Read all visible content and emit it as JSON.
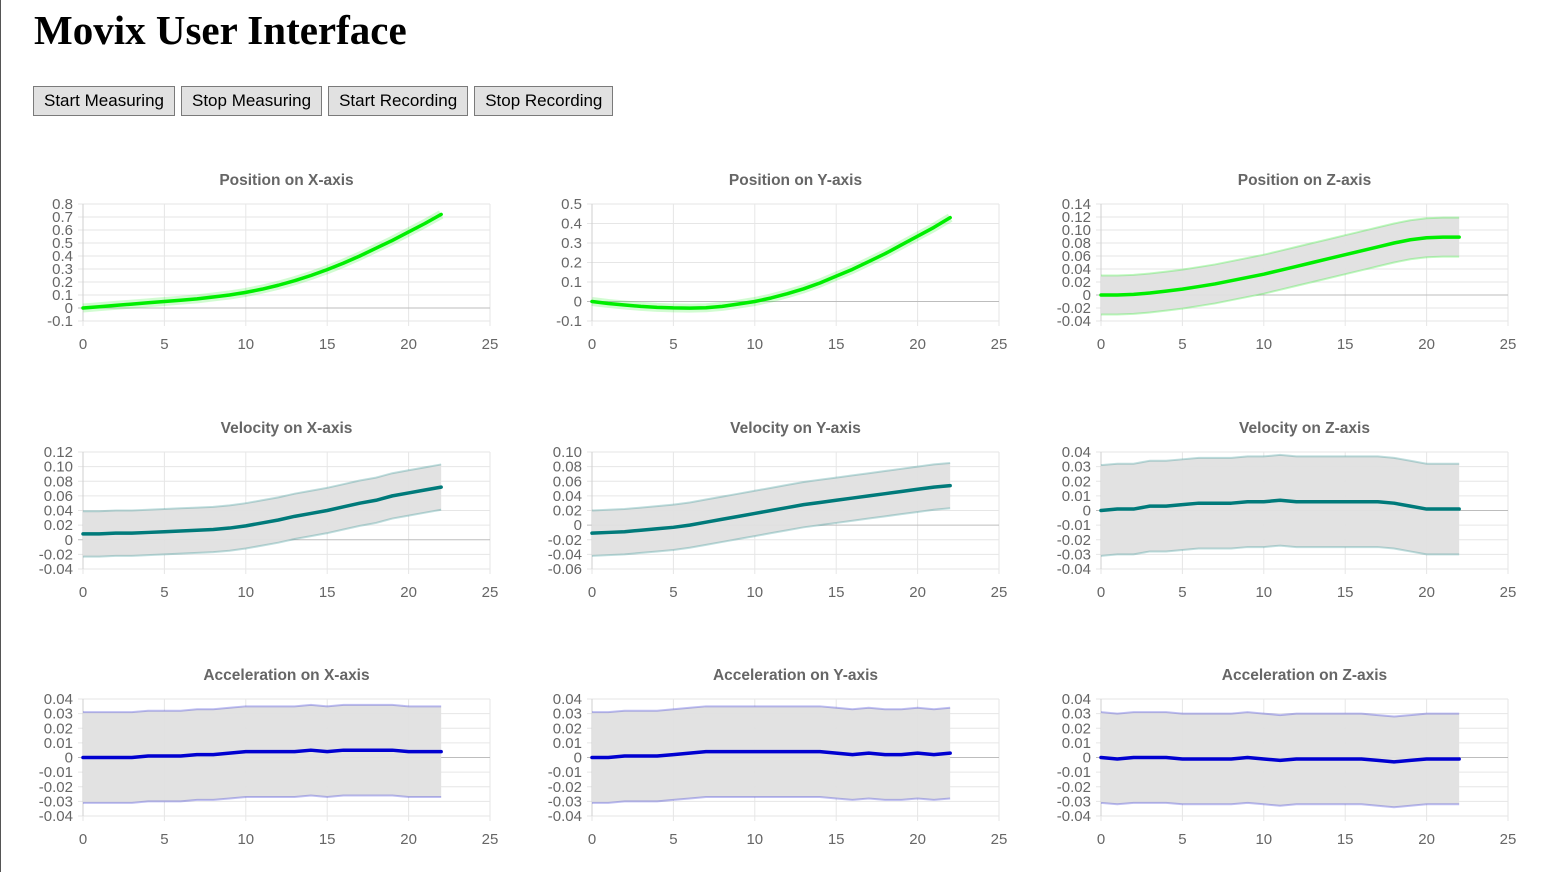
{
  "page": {
    "title": "Movix User Interface"
  },
  "toolbar": {
    "buttons": [
      {
        "label": "Start Measuring"
      },
      {
        "label": "Stop Measuring"
      },
      {
        "label": "Start Recording"
      },
      {
        "label": "Stop Recording"
      }
    ]
  },
  "colors": {
    "position": "#00ee00",
    "velocity": "#007a7a",
    "acceleration": "#0000d0",
    "band_fill": "#e0e0e0"
  },
  "chart_data": [
    {
      "type": "line",
      "title": "Position on X-axis",
      "color": "#00ee00",
      "xlim": [
        0,
        25
      ],
      "xticks": [
        0,
        5,
        10,
        15,
        20,
        25
      ],
      "ylim": [
        -0.1,
        0.8
      ],
      "yticks": [
        -0.1,
        0,
        0.1,
        0.2,
        0.3,
        0.4,
        0.5,
        0.6,
        0.7,
        0.8
      ],
      "ydecimals": 1,
      "x": [
        0,
        1,
        2,
        3,
        4,
        5,
        6,
        7,
        8,
        9,
        10,
        11,
        12,
        13,
        14,
        15,
        16,
        17,
        18,
        19,
        20,
        21,
        22
      ],
      "y": [
        0,
        0.01,
        0.02,
        0.03,
        0.04,
        0.05,
        0.06,
        0.07,
        0.085,
        0.1,
        0.12,
        0.145,
        0.175,
        0.21,
        0.25,
        0.295,
        0.345,
        0.4,
        0.46,
        0.52,
        0.585,
        0.65,
        0.72
      ],
      "band": [
        0,
        0,
        0,
        0,
        0,
        0,
        0,
        0,
        0,
        0,
        0,
        0,
        0,
        0,
        0,
        0,
        0,
        0,
        0,
        0,
        0,
        0,
        0
      ]
    },
    {
      "type": "line",
      "title": "Position on Y-axis",
      "color": "#00ee00",
      "xlim": [
        0,
        25
      ],
      "xticks": [
        0,
        5,
        10,
        15,
        20,
        25
      ],
      "ylim": [
        -0.1,
        0.5
      ],
      "yticks": [
        -0.1,
        0,
        0.1,
        0.2,
        0.3,
        0.4,
        0.5
      ],
      "ydecimals": 1,
      "x": [
        0,
        1,
        2,
        3,
        4,
        5,
        6,
        7,
        8,
        9,
        10,
        11,
        12,
        13,
        14,
        15,
        16,
        17,
        18,
        19,
        20,
        21,
        22
      ],
      "y": [
        0,
        -0.01,
        -0.018,
        -0.025,
        -0.03,
        -0.033,
        -0.034,
        -0.032,
        -0.025,
        -0.013,
        0,
        0.018,
        0.04,
        0.065,
        0.095,
        0.13,
        0.165,
        0.205,
        0.245,
        0.29,
        0.335,
        0.38,
        0.43
      ],
      "band": [
        0,
        0,
        0,
        0,
        0,
        0,
        0,
        0,
        0,
        0,
        0,
        0,
        0,
        0,
        0,
        0,
        0,
        0,
        0,
        0,
        0,
        0,
        0
      ]
    },
    {
      "type": "line",
      "title": "Position on Z-axis",
      "color": "#00ee00",
      "xlim": [
        0,
        25
      ],
      "xticks": [
        0,
        5,
        10,
        15,
        20,
        25
      ],
      "ylim": [
        -0.04,
        0.14
      ],
      "yticks": [
        -0.04,
        -0.02,
        0,
        0.02,
        0.04,
        0.06,
        0.08,
        0.1,
        0.12,
        0.14
      ],
      "ydecimals": 2,
      "x": [
        0,
        1,
        2,
        3,
        4,
        5,
        6,
        7,
        8,
        9,
        10,
        11,
        12,
        13,
        14,
        15,
        16,
        17,
        18,
        19,
        20,
        21,
        22
      ],
      "y": [
        0,
        0,
        0.001,
        0.003,
        0.006,
        0.009,
        0.013,
        0.017,
        0.022,
        0.027,
        0.032,
        0.038,
        0.044,
        0.05,
        0.056,
        0.062,
        0.068,
        0.074,
        0.08,
        0.085,
        0.088,
        0.089,
        0.089
      ],
      "band": [
        0.03,
        0.03,
        0.03,
        0.03,
        0.03,
        0.03,
        0.03,
        0.03,
        0.03,
        0.03,
        0.03,
        0.03,
        0.03,
        0.03,
        0.03,
        0.03,
        0.03,
        0.03,
        0.03,
        0.03,
        0.03,
        0.03,
        0.03
      ]
    },
    {
      "type": "line",
      "title": "Velocity on X-axis",
      "color": "#007a7a",
      "xlim": [
        0,
        25
      ],
      "xticks": [
        0,
        5,
        10,
        15,
        20,
        25
      ],
      "ylim": [
        -0.04,
        0.12
      ],
      "yticks": [
        -0.04,
        -0.02,
        0,
        0.02,
        0.04,
        0.06,
        0.08,
        0.1,
        0.12
      ],
      "ydecimals": 2,
      "x": [
        0,
        1,
        2,
        3,
        4,
        5,
        6,
        7,
        8,
        9,
        10,
        11,
        12,
        13,
        14,
        15,
        16,
        17,
        18,
        19,
        20,
        21,
        22
      ],
      "y": [
        0.008,
        0.008,
        0.009,
        0.009,
        0.01,
        0.011,
        0.012,
        0.013,
        0.014,
        0.016,
        0.019,
        0.023,
        0.027,
        0.032,
        0.036,
        0.04,
        0.045,
        0.05,
        0.054,
        0.06,
        0.064,
        0.068,
        0.072
      ],
      "band": [
        0.031,
        0.031,
        0.031,
        0.031,
        0.031,
        0.031,
        0.031,
        0.031,
        0.031,
        0.031,
        0.031,
        0.031,
        0.031,
        0.031,
        0.031,
        0.031,
        0.031,
        0.031,
        0.031,
        0.031,
        0.031,
        0.031,
        0.031
      ]
    },
    {
      "type": "line",
      "title": "Velocity on Y-axis",
      "color": "#007a7a",
      "xlim": [
        0,
        25
      ],
      "xticks": [
        0,
        5,
        10,
        15,
        20,
        25
      ],
      "ylim": [
        -0.06,
        0.1
      ],
      "yticks": [
        -0.06,
        -0.04,
        -0.02,
        0,
        0.02,
        0.04,
        0.06,
        0.08,
        0.1
      ],
      "ydecimals": 2,
      "x": [
        0,
        1,
        2,
        3,
        4,
        5,
        6,
        7,
        8,
        9,
        10,
        11,
        12,
        13,
        14,
        15,
        16,
        17,
        18,
        19,
        20,
        21,
        22
      ],
      "y": [
        -0.011,
        -0.01,
        -0.009,
        -0.007,
        -0.005,
        -0.003,
        0,
        0.004,
        0.008,
        0.012,
        0.016,
        0.02,
        0.024,
        0.028,
        0.031,
        0.034,
        0.037,
        0.04,
        0.043,
        0.046,
        0.049,
        0.052,
        0.054
      ],
      "band": [
        0.031,
        0.031,
        0.031,
        0.031,
        0.031,
        0.031,
        0.031,
        0.031,
        0.031,
        0.031,
        0.031,
        0.031,
        0.031,
        0.031,
        0.031,
        0.031,
        0.031,
        0.031,
        0.031,
        0.031,
        0.031,
        0.031,
        0.031
      ]
    },
    {
      "type": "line",
      "title": "Velocity on Z-axis",
      "color": "#007a7a",
      "xlim": [
        0,
        25
      ],
      "xticks": [
        0,
        5,
        10,
        15,
        20,
        25
      ],
      "ylim": [
        -0.04,
        0.04
      ],
      "yticks": [
        -0.04,
        -0.03,
        -0.02,
        -0.01,
        0,
        0.01,
        0.02,
        0.03,
        0.04
      ],
      "ydecimals": 2,
      "x": [
        0,
        1,
        2,
        3,
        4,
        5,
        6,
        7,
        8,
        9,
        10,
        11,
        12,
        13,
        14,
        15,
        16,
        17,
        18,
        19,
        20,
        21,
        22
      ],
      "y": [
        0,
        0.001,
        0.001,
        0.003,
        0.003,
        0.004,
        0.005,
        0.005,
        0.005,
        0.006,
        0.006,
        0.007,
        0.006,
        0.006,
        0.006,
        0.006,
        0.006,
        0.006,
        0.005,
        0.003,
        0.001,
        0.001,
        0.001
      ],
      "band": [
        0.031,
        0.031,
        0.031,
        0.031,
        0.031,
        0.031,
        0.031,
        0.031,
        0.031,
        0.031,
        0.031,
        0.031,
        0.031,
        0.031,
        0.031,
        0.031,
        0.031,
        0.031,
        0.031,
        0.031,
        0.031,
        0.031,
        0.031
      ]
    },
    {
      "type": "line",
      "title": "Acceleration on X-axis",
      "color": "#0000d0",
      "xlim": [
        0,
        25
      ],
      "xticks": [
        0,
        5,
        10,
        15,
        20,
        25
      ],
      "ylim": [
        -0.04,
        0.04
      ],
      "yticks": [
        -0.04,
        -0.03,
        -0.02,
        -0.01,
        0,
        0.01,
        0.02,
        0.03,
        0.04
      ],
      "ydecimals": 2,
      "x": [
        0,
        1,
        2,
        3,
        4,
        5,
        6,
        7,
        8,
        9,
        10,
        11,
        12,
        13,
        14,
        15,
        16,
        17,
        18,
        19,
        20,
        21,
        22
      ],
      "y": [
        0,
        0,
        0,
        0,
        0.001,
        0.001,
        0.001,
        0.002,
        0.002,
        0.003,
        0.004,
        0.004,
        0.004,
        0.004,
        0.005,
        0.004,
        0.005,
        0.005,
        0.005,
        0.005,
        0.004,
        0.004,
        0.004
      ],
      "band": [
        0.031,
        0.031,
        0.031,
        0.031,
        0.031,
        0.031,
        0.031,
        0.031,
        0.031,
        0.031,
        0.031,
        0.031,
        0.031,
        0.031,
        0.031,
        0.031,
        0.031,
        0.031,
        0.031,
        0.031,
        0.031,
        0.031,
        0.031
      ]
    },
    {
      "type": "line",
      "title": "Acceleration on Y-axis",
      "color": "#0000d0",
      "xlim": [
        0,
        25
      ],
      "xticks": [
        0,
        5,
        10,
        15,
        20,
        25
      ],
      "ylim": [
        -0.04,
        0.04
      ],
      "yticks": [
        -0.04,
        -0.03,
        -0.02,
        -0.01,
        0,
        0.01,
        0.02,
        0.03,
        0.04
      ],
      "ydecimals": 2,
      "x": [
        0,
        1,
        2,
        3,
        4,
        5,
        6,
        7,
        8,
        9,
        10,
        11,
        12,
        13,
        14,
        15,
        16,
        17,
        18,
        19,
        20,
        21,
        22
      ],
      "y": [
        0,
        0,
        0.001,
        0.001,
        0.001,
        0.002,
        0.003,
        0.004,
        0.004,
        0.004,
        0.004,
        0.004,
        0.004,
        0.004,
        0.004,
        0.003,
        0.002,
        0.003,
        0.002,
        0.002,
        0.003,
        0.002,
        0.003
      ],
      "band": [
        0.031,
        0.031,
        0.031,
        0.031,
        0.031,
        0.031,
        0.031,
        0.031,
        0.031,
        0.031,
        0.031,
        0.031,
        0.031,
        0.031,
        0.031,
        0.031,
        0.031,
        0.031,
        0.031,
        0.031,
        0.031,
        0.031,
        0.031
      ]
    },
    {
      "type": "line",
      "title": "Acceleration on Z-axis",
      "color": "#0000d0",
      "xlim": [
        0,
        25
      ],
      "xticks": [
        0,
        5,
        10,
        15,
        20,
        25
      ],
      "ylim": [
        -0.04,
        0.04
      ],
      "yticks": [
        -0.04,
        -0.03,
        -0.02,
        -0.01,
        0,
        0.01,
        0.02,
        0.03,
        0.04
      ],
      "ydecimals": 2,
      "x": [
        0,
        1,
        2,
        3,
        4,
        5,
        6,
        7,
        8,
        9,
        10,
        11,
        12,
        13,
        14,
        15,
        16,
        17,
        18,
        19,
        20,
        21,
        22
      ],
      "y": [
        0,
        -0.001,
        0,
        0,
        0,
        -0.001,
        -0.001,
        -0.001,
        -0.001,
        0,
        -0.001,
        -0.002,
        -0.001,
        -0.001,
        -0.001,
        -0.001,
        -0.001,
        -0.002,
        -0.003,
        -0.002,
        -0.001,
        -0.001,
        -0.001
      ],
      "band": [
        0.031,
        0.031,
        0.031,
        0.031,
        0.031,
        0.031,
        0.031,
        0.031,
        0.031,
        0.031,
        0.031,
        0.031,
        0.031,
        0.031,
        0.031,
        0.031,
        0.031,
        0.031,
        0.031,
        0.031,
        0.031,
        0.031,
        0.031
      ]
    }
  ]
}
